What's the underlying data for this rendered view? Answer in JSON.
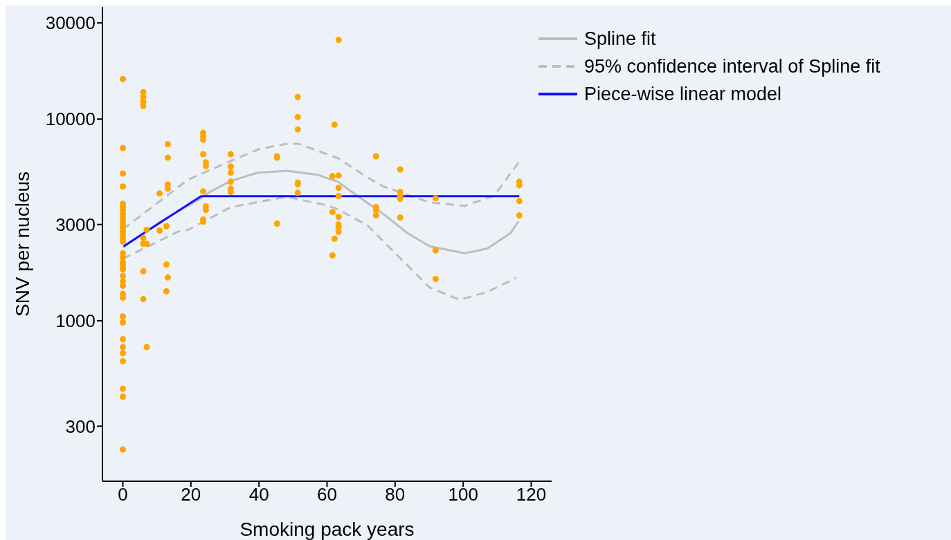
{
  "chart_data": {
    "type": "scatter",
    "xlabel": "Smoking pack years",
    "ylabel": "SNV per nucleus",
    "log": "y",
    "legend": "top right",
    "xlim": [
      -6,
      126
    ],
    "xticks": [
      0,
      20,
      40,
      60,
      80,
      100,
      120
    ],
    "ylim": [
      160,
      36000
    ],
    "yticks": [
      300,
      1000,
      3000,
      10000,
      30000
    ],
    "series": [
      {
        "color": "#ffa500",
        "marker": "circle",
        "x": [
          0,
          0,
          0,
          0,
          0,
          0,
          0,
          0,
          0,
          0,
          0,
          0,
          0,
          0,
          0,
          0,
          0,
          0,
          0,
          0,
          0,
          0,
          0,
          0,
          0,
          0,
          0,
          0,
          0,
          0,
          0,
          0,
          0,
          0,
          0,
          0,
          6,
          6,
          6,
          6,
          6,
          6,
          6,
          6,
          7,
          7,
          7,
          10.8,
          10.8,
          12.8,
          12.8,
          12.8,
          13.2,
          13.2,
          13.2,
          13.2,
          13.2,
          23.6,
          23.6,
          23.6,
          23.6,
          23.6,
          23.6,
          23.6,
          24.4,
          24.4,
          24.4,
          24.4,
          31.7,
          31.7,
          31.7,
          31.7,
          31.7,
          31.7,
          45.3,
          45.3,
          45.3,
          51.4,
          51.4,
          51.4,
          51.4,
          51.4,
          51.4,
          61.6,
          61.6,
          61.6,
          62.2,
          62.2,
          63.4,
          63.4,
          63.4,
          63.4,
          63.4,
          63.4,
          63.4,
          63.4,
          74.4,
          74.4,
          74.4,
          74.4,
          81.5,
          81.5,
          81.5,
          81.5,
          81.5,
          91.9,
          91.9,
          91.9,
          116.5,
          116.5,
          116.5,
          116.5
        ],
        "values": [
          15800,
          7190,
          5370,
          4630,
          3800,
          3660,
          3520,
          3380,
          3250,
          3120,
          3000,
          2890,
          2780,
          2670,
          2570,
          2470,
          2160,
          2060,
          1950,
          1900,
          1850,
          1800,
          1670,
          1570,
          1490,
          1360,
          1300,
          1050,
          980,
          810,
          740,
          690,
          630,
          460,
          420,
          230,
          13600,
          12850,
          12170,
          11610,
          2570,
          2410,
          1760,
          1280,
          2410,
          2820,
          740,
          4280,
          2800,
          2940,
          1900,
          1400,
          7510,
          6440,
          4740,
          4520,
          1640,
          8550,
          8220,
          7900,
          6700,
          4380,
          3180,
          3100,
          6100,
          5860,
          3690,
          3540,
          6700,
          5820,
          5420,
          4890,
          4520,
          4350,
          6540,
          6440,
          3030,
          12860,
          10240,
          8890,
          4850,
          4740,
          4310,
          5210,
          3460,
          2110,
          9390,
          2550,
          24700,
          5250,
          4560,
          4150,
          3280,
          3000,
          2910,
          2760,
          6540,
          3660,
          3540,
          3330,
          5630,
          4350,
          4180,
          4020,
          3250,
          4050,
          2230,
          1610,
          4890,
          4700,
          3920,
          3330
        ]
      },
      {
        "type": "line",
        "name": "Spline fit",
        "color": "#bdbdbd",
        "line_style": "solid",
        "marker": "none",
        "x": [
          0,
          11,
          23,
          25.8,
          31.7,
          39.4,
          48.2,
          57.1,
          63.2,
          69.9,
          76.6,
          83.5,
          90.2,
          100.4,
          107.1,
          114,
          116.3
        ],
        "values": [
          2300,
          3100,
          4050,
          4380,
          4930,
          5410,
          5540,
          5300,
          4890,
          4050,
          3380,
          2730,
          2340,
          2160,
          2280,
          2730,
          3120
        ]
      },
      {
        "type": "line",
        "name": "95% confidence interval of Spline fit",
        "color": "#bdbdbd",
        "line_style": "dashed",
        "marker": "none",
        "x": [
          0,
          19.1,
          31.7,
          40,
          48.2,
          51.6,
          63.2,
          72,
          76.6,
          90.2,
          100.4,
          109.1,
          116.3
        ],
        "values": [
          2840,
          5000,
          6200,
          7100,
          7540,
          7540,
          6400,
          5120,
          4630,
          3860,
          3710,
          4170,
          6100
        ]
      },
      {
        "type": "line",
        "color": "#bdbdbd",
        "line_style": "dashed",
        "marker": "none",
        "x": [
          0,
          16.5,
          19.1,
          31.7,
          48.2,
          59.8,
          63.2,
          72,
          76.6,
          90.2,
          99,
          107.1,
          115.6
        ],
        "values": [
          2030,
          2780,
          2820,
          3660,
          4120,
          3740,
          3570,
          2960,
          2470,
          1460,
          1270,
          1390,
          1630
        ]
      },
      {
        "type": "line",
        "name": "Piece-wise linear model",
        "color": "#1010ff",
        "line_style": "solid",
        "marker": "none",
        "x": [
          0.2,
          23,
          116.5
        ],
        "values": [
          2340,
          4150,
          4150
        ]
      }
    ]
  }
}
